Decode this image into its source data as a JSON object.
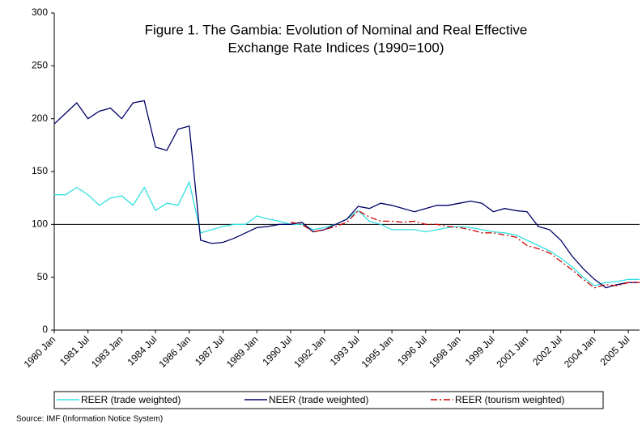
{
  "chart_data": {
    "type": "line",
    "title": [
      "Figure 1. The Gambia: Evolution of Nominal and Real Effective",
      "Exchange Rate Indices (1990=100)"
    ],
    "source": "Source: IMF (Information Notice System)",
    "categories": [
      "1980 Jan",
      null,
      null,
      "1981 Jul",
      null,
      null,
      "1983 Jan",
      null,
      null,
      "1984 Jul",
      null,
      null,
      "1986 Jan",
      null,
      null,
      "1987 Jul",
      null,
      null,
      "1989 Jan",
      null,
      null,
      "1990 Jul",
      null,
      null,
      "1992 Jan",
      null,
      null,
      "1993 Jul",
      null,
      null,
      "1995 Jan",
      null,
      null,
      "1996 Jul",
      null,
      null,
      "1998 Jan",
      null,
      null,
      "1999 Jul",
      null,
      null,
      "2001 Jan",
      null,
      null,
      "2002 Jul",
      null,
      null,
      "2004 Jan",
      null,
      null,
      "2005 Jul",
      null
    ],
    "series": [
      {
        "name": "REER (trade weighted)",
        "color": "#33e0e0",
        "dash": "none",
        "values": [
          128,
          128,
          135,
          128,
          118,
          125,
          127,
          118,
          135,
          113,
          120,
          118,
          140,
          92,
          95,
          98,
          100,
          100,
          108,
          105,
          103,
          100,
          100,
          95,
          97,
          100,
          105,
          113,
          103,
          100,
          95,
          95,
          95,
          93,
          95,
          97,
          98,
          97,
          95,
          93,
          92,
          90,
          85,
          80,
          75,
          68,
          60,
          50,
          42,
          45,
          46,
          48,
          48
        ]
      },
      {
        "name": "NEER (trade weighted)",
        "color": "#000066",
        "dash": "none",
        "values": [
          195,
          205,
          215,
          200,
          207,
          210,
          200,
          215,
          217,
          173,
          170,
          190,
          193,
          85,
          82,
          83,
          87,
          92,
          97,
          98,
          100,
          100,
          102,
          93,
          95,
          100,
          105,
          117,
          115,
          120,
          118,
          115,
          112,
          115,
          118,
          118,
          120,
          122,
          120,
          112,
          115,
          113,
          112,
          98,
          95,
          85,
          70,
          58,
          48,
          40,
          43,
          45,
          45
        ]
      },
      {
        "name": "REER (tourism weighted)",
        "color": "#cc0000",
        "dash": "8 3 2 3",
        "values": [
          null,
          null,
          null,
          null,
          null,
          null,
          null,
          null,
          null,
          null,
          null,
          null,
          null,
          null,
          null,
          null,
          null,
          null,
          null,
          null,
          null,
          102,
          100,
          93,
          95,
          98,
          102,
          113,
          107,
          103,
          103,
          102,
          103,
          100,
          100,
          98,
          97,
          95,
          92,
          92,
          90,
          88,
          80,
          77,
          73,
          65,
          57,
          48,
          40,
          43,
          42,
          45,
          45
        ]
      }
    ],
    "ylim": [
      0,
      300
    ],
    "yticks": [
      0,
      50,
      100,
      150,
      200,
      250,
      300
    ],
    "reference_line": 100,
    "grid": false,
    "legend": "bottom"
  }
}
